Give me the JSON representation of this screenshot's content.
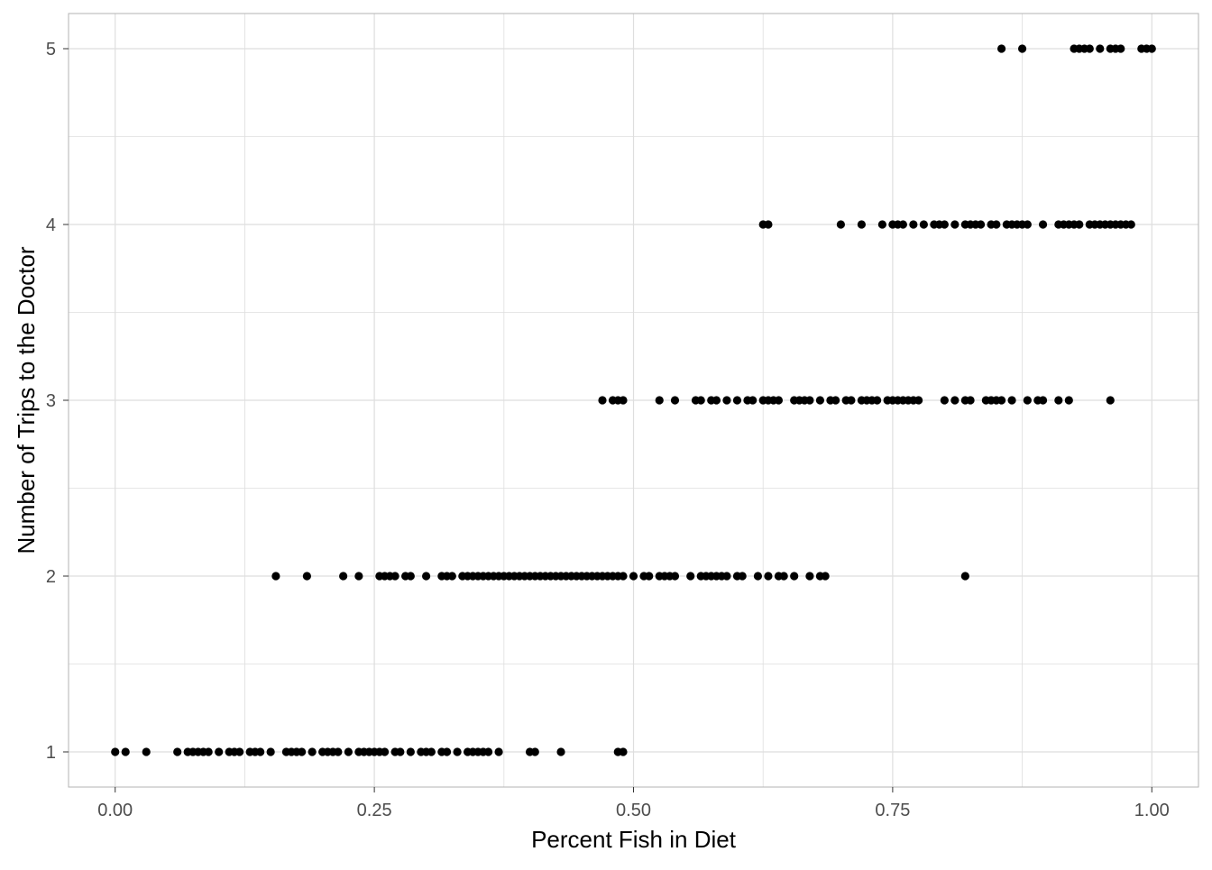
{
  "chart_data": {
    "type": "scatter",
    "title": "",
    "xlabel": "Percent Fish in Diet",
    "ylabel": "Number of Trips to the Doctor",
    "xlim": [
      -0.045,
      1.045
    ],
    "ylim": [
      0.8,
      5.2
    ],
    "x_ticks": [
      0,
      0.25,
      0.5,
      0.75,
      1
    ],
    "x_tick_labels": [
      "0.00",
      "0.25",
      "0.50",
      "0.75",
      "1.00"
    ],
    "y_ticks": [
      1,
      2,
      3,
      4,
      5
    ],
    "y_tick_labels": [
      "1",
      "2",
      "3",
      "4",
      "5"
    ],
    "x_minor_ticks": [
      0.125,
      0.375,
      0.625,
      0.875
    ],
    "y_minor_ticks": [
      1.5,
      2.5,
      3.5,
      4.5
    ],
    "grid": true,
    "legend": "none",
    "point_color": "#000000",
    "grid_color": "#dedede",
    "panel_border_color": "#b3b3b3",
    "series": [
      {
        "name": "",
        "points": [
          [
            0.0,
            1
          ],
          [
            0.01,
            1
          ],
          [
            0.03,
            1
          ],
          [
            0.06,
            1
          ],
          [
            0.07,
            1
          ],
          [
            0.075,
            1
          ],
          [
            0.08,
            1
          ],
          [
            0.085,
            1
          ],
          [
            0.09,
            1
          ],
          [
            0.1,
            1
          ],
          [
            0.11,
            1
          ],
          [
            0.115,
            1
          ],
          [
            0.12,
            1
          ],
          [
            0.13,
            1
          ],
          [
            0.135,
            1
          ],
          [
            0.14,
            1
          ],
          [
            0.15,
            1
          ],
          [
            0.165,
            1
          ],
          [
            0.17,
            1
          ],
          [
            0.175,
            1
          ],
          [
            0.18,
            1
          ],
          [
            0.19,
            1
          ],
          [
            0.2,
            1
          ],
          [
            0.205,
            1
          ],
          [
            0.21,
            1
          ],
          [
            0.215,
            1
          ],
          [
            0.225,
            1
          ],
          [
            0.235,
            1
          ],
          [
            0.24,
            1
          ],
          [
            0.245,
            1
          ],
          [
            0.25,
            1
          ],
          [
            0.255,
            1
          ],
          [
            0.26,
            1
          ],
          [
            0.27,
            1
          ],
          [
            0.275,
            1
          ],
          [
            0.285,
            1
          ],
          [
            0.295,
            1
          ],
          [
            0.3,
            1
          ],
          [
            0.305,
            1
          ],
          [
            0.315,
            1
          ],
          [
            0.32,
            1
          ],
          [
            0.33,
            1
          ],
          [
            0.34,
            1
          ],
          [
            0.345,
            1
          ],
          [
            0.35,
            1
          ],
          [
            0.355,
            1
          ],
          [
            0.36,
            1
          ],
          [
            0.37,
            1
          ],
          [
            0.4,
            1
          ],
          [
            0.405,
            1
          ],
          [
            0.43,
            1
          ],
          [
            0.485,
            1
          ],
          [
            0.49,
            1
          ],
          [
            0.155,
            2
          ],
          [
            0.185,
            2
          ],
          [
            0.22,
            2
          ],
          [
            0.235,
            2
          ],
          [
            0.255,
            2
          ],
          [
            0.26,
            2
          ],
          [
            0.265,
            2
          ],
          [
            0.27,
            2
          ],
          [
            0.28,
            2
          ],
          [
            0.285,
            2
          ],
          [
            0.3,
            2
          ],
          [
            0.315,
            2
          ],
          [
            0.32,
            2
          ],
          [
            0.325,
            2
          ],
          [
            0.335,
            2
          ],
          [
            0.34,
            2
          ],
          [
            0.345,
            2
          ],
          [
            0.35,
            2
          ],
          [
            0.355,
            2
          ],
          [
            0.36,
            2
          ],
          [
            0.365,
            2
          ],
          [
            0.37,
            2
          ],
          [
            0.375,
            2
          ],
          [
            0.38,
            2
          ],
          [
            0.385,
            2
          ],
          [
            0.39,
            2
          ],
          [
            0.395,
            2
          ],
          [
            0.4,
            2
          ],
          [
            0.405,
            2
          ],
          [
            0.41,
            2
          ],
          [
            0.415,
            2
          ],
          [
            0.42,
            2
          ],
          [
            0.425,
            2
          ],
          [
            0.43,
            2
          ],
          [
            0.435,
            2
          ],
          [
            0.44,
            2
          ],
          [
            0.445,
            2
          ],
          [
            0.45,
            2
          ],
          [
            0.455,
            2
          ],
          [
            0.46,
            2
          ],
          [
            0.465,
            2
          ],
          [
            0.47,
            2
          ],
          [
            0.475,
            2
          ],
          [
            0.48,
            2
          ],
          [
            0.485,
            2
          ],
          [
            0.49,
            2
          ],
          [
            0.5,
            2
          ],
          [
            0.51,
            2
          ],
          [
            0.515,
            2
          ],
          [
            0.525,
            2
          ],
          [
            0.53,
            2
          ],
          [
            0.535,
            2
          ],
          [
            0.54,
            2
          ],
          [
            0.555,
            2
          ],
          [
            0.565,
            2
          ],
          [
            0.57,
            2
          ],
          [
            0.575,
            2
          ],
          [
            0.58,
            2
          ],
          [
            0.585,
            2
          ],
          [
            0.59,
            2
          ],
          [
            0.6,
            2
          ],
          [
            0.605,
            2
          ],
          [
            0.62,
            2
          ],
          [
            0.63,
            2
          ],
          [
            0.64,
            2
          ],
          [
            0.645,
            2
          ],
          [
            0.655,
            2
          ],
          [
            0.67,
            2
          ],
          [
            0.68,
            2
          ],
          [
            0.685,
            2
          ],
          [
            0.82,
            2
          ],
          [
            0.47,
            3
          ],
          [
            0.48,
            3
          ],
          [
            0.485,
            3
          ],
          [
            0.49,
            3
          ],
          [
            0.525,
            3
          ],
          [
            0.54,
            3
          ],
          [
            0.56,
            3
          ],
          [
            0.565,
            3
          ],
          [
            0.575,
            3
          ],
          [
            0.58,
            3
          ],
          [
            0.59,
            3
          ],
          [
            0.6,
            3
          ],
          [
            0.61,
            3
          ],
          [
            0.615,
            3
          ],
          [
            0.625,
            3
          ],
          [
            0.63,
            3
          ],
          [
            0.635,
            3
          ],
          [
            0.64,
            3
          ],
          [
            0.655,
            3
          ],
          [
            0.66,
            3
          ],
          [
            0.665,
            3
          ],
          [
            0.67,
            3
          ],
          [
            0.68,
            3
          ],
          [
            0.69,
            3
          ],
          [
            0.695,
            3
          ],
          [
            0.705,
            3
          ],
          [
            0.71,
            3
          ],
          [
            0.72,
            3
          ],
          [
            0.725,
            3
          ],
          [
            0.73,
            3
          ],
          [
            0.735,
            3
          ],
          [
            0.745,
            3
          ],
          [
            0.75,
            3
          ],
          [
            0.755,
            3
          ],
          [
            0.76,
            3
          ],
          [
            0.765,
            3
          ],
          [
            0.77,
            3
          ],
          [
            0.775,
            3
          ],
          [
            0.8,
            3
          ],
          [
            0.81,
            3
          ],
          [
            0.82,
            3
          ],
          [
            0.825,
            3
          ],
          [
            0.84,
            3
          ],
          [
            0.845,
            3
          ],
          [
            0.85,
            3
          ],
          [
            0.855,
            3
          ],
          [
            0.865,
            3
          ],
          [
            0.88,
            3
          ],
          [
            0.89,
            3
          ],
          [
            0.895,
            3
          ],
          [
            0.91,
            3
          ],
          [
            0.92,
            3
          ],
          [
            0.96,
            3
          ],
          [
            0.625,
            4
          ],
          [
            0.63,
            4
          ],
          [
            0.7,
            4
          ],
          [
            0.72,
            4
          ],
          [
            0.74,
            4
          ],
          [
            0.75,
            4
          ],
          [
            0.755,
            4
          ],
          [
            0.76,
            4
          ],
          [
            0.77,
            4
          ],
          [
            0.78,
            4
          ],
          [
            0.79,
            4
          ],
          [
            0.795,
            4
          ],
          [
            0.8,
            4
          ],
          [
            0.81,
            4
          ],
          [
            0.82,
            4
          ],
          [
            0.825,
            4
          ],
          [
            0.83,
            4
          ],
          [
            0.835,
            4
          ],
          [
            0.845,
            4
          ],
          [
            0.85,
            4
          ],
          [
            0.86,
            4
          ],
          [
            0.865,
            4
          ],
          [
            0.87,
            4
          ],
          [
            0.875,
            4
          ],
          [
            0.88,
            4
          ],
          [
            0.895,
            4
          ],
          [
            0.91,
            4
          ],
          [
            0.915,
            4
          ],
          [
            0.92,
            4
          ],
          [
            0.925,
            4
          ],
          [
            0.93,
            4
          ],
          [
            0.94,
            4
          ],
          [
            0.945,
            4
          ],
          [
            0.95,
            4
          ],
          [
            0.955,
            4
          ],
          [
            0.96,
            4
          ],
          [
            0.965,
            4
          ],
          [
            0.97,
            4
          ],
          [
            0.975,
            4
          ],
          [
            0.98,
            4
          ],
          [
            0.855,
            5
          ],
          [
            0.875,
            5
          ],
          [
            0.925,
            5
          ],
          [
            0.93,
            5
          ],
          [
            0.935,
            5
          ],
          [
            0.94,
            5
          ],
          [
            0.95,
            5
          ],
          [
            0.96,
            5
          ],
          [
            0.965,
            5
          ],
          [
            0.97,
            5
          ],
          [
            0.99,
            5
          ],
          [
            0.995,
            5
          ],
          [
            1.0,
            5
          ]
        ]
      }
    ]
  }
}
